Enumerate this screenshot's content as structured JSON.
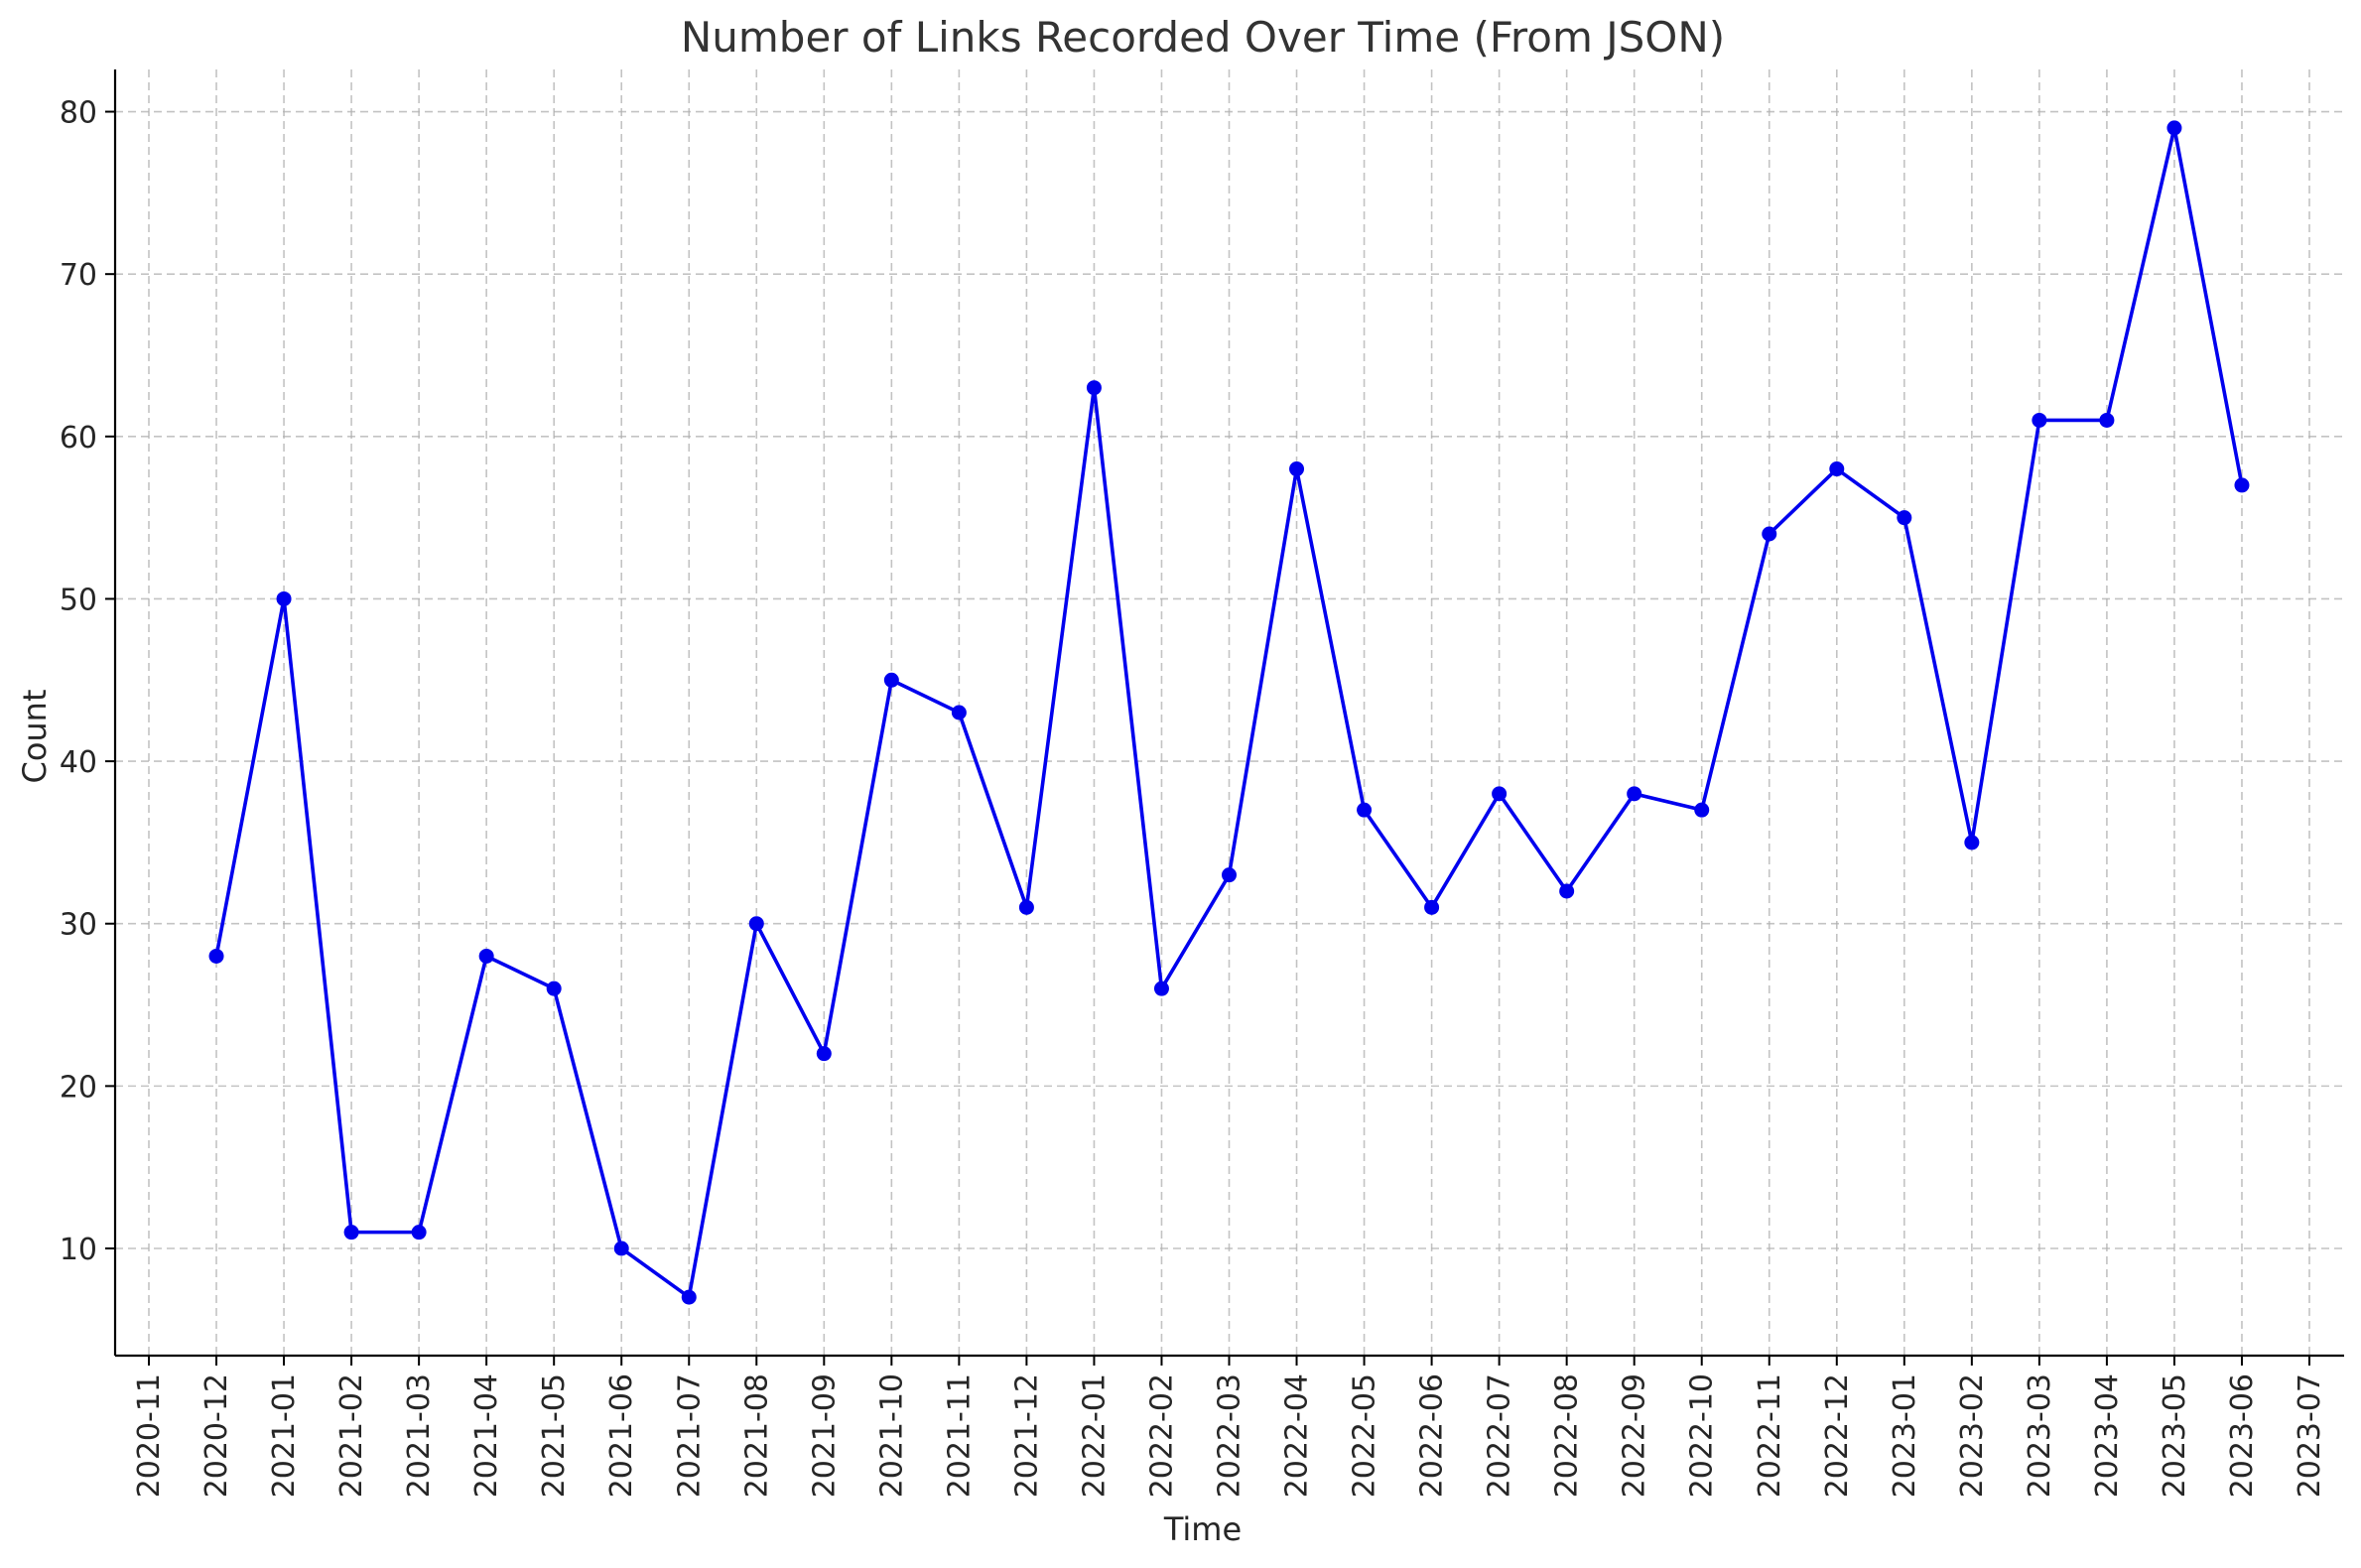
{
  "chart_data": {
    "type": "line",
    "title": "Number of Links Recorded Over Time (From JSON)",
    "xlabel": "Time",
    "ylabel": "Count",
    "x_ticks": [
      "2020-11",
      "2020-12",
      "2021-01",
      "2021-02",
      "2021-03",
      "2021-04",
      "2021-05",
      "2021-06",
      "2021-07",
      "2021-08",
      "2021-09",
      "2021-10",
      "2021-11",
      "2021-12",
      "2022-01",
      "2022-02",
      "2022-03",
      "2022-04",
      "2022-05",
      "2022-06",
      "2022-07",
      "2022-08",
      "2022-09",
      "2022-10",
      "2022-11",
      "2022-12",
      "2023-01",
      "2023-02",
      "2023-03",
      "2023-04",
      "2023-05",
      "2023-06",
      "2023-07"
    ],
    "x": [
      "2020-12",
      "2021-01",
      "2021-02",
      "2021-03",
      "2021-04",
      "2021-05",
      "2021-06",
      "2021-07",
      "2021-08",
      "2021-09",
      "2021-10",
      "2021-11",
      "2021-12",
      "2022-01",
      "2022-02",
      "2022-03",
      "2022-04",
      "2022-05",
      "2022-06",
      "2022-07",
      "2022-08",
      "2022-09",
      "2022-10",
      "2022-11",
      "2022-12",
      "2023-01",
      "2023-02",
      "2023-03",
      "2023-04",
      "2023-05",
      "2023-06"
    ],
    "series": [
      {
        "values": [
          28,
          50,
          11,
          11,
          28,
          26,
          10,
          7,
          30,
          22,
          45,
          43,
          31,
          63,
          26,
          33,
          58,
          37,
          31,
          38,
          32,
          38,
          37,
          54,
          58,
          55,
          35,
          61,
          61,
          79,
          57
        ],
        "color": "#0000ee",
        "marker": "circle"
      }
    ],
    "y_ticks": [
      10,
      20,
      30,
      40,
      50,
      60,
      70,
      80
    ],
    "ylim": [
      3.4,
      82.6
    ],
    "grid": true,
    "legend": "none"
  }
}
